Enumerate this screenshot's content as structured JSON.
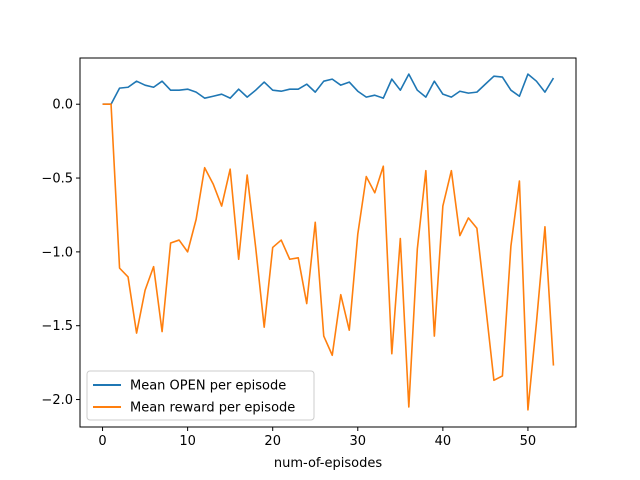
{
  "chart_data": {
    "type": "line",
    "title": "",
    "xlabel": "num-of-episodes",
    "ylabel": "",
    "xlim": [
      -2.65,
      55.65
    ],
    "ylim": [
      -2.186,
      0.313
    ],
    "xticks": [
      0,
      10,
      20,
      30,
      40,
      50
    ],
    "yticks": [
      0.0,
      -0.5,
      -1.0,
      -1.5,
      -2.0
    ],
    "ytick_labels": [
      "0.0",
      "−0.5",
      "−1.0",
      "−1.5",
      "−2.0"
    ],
    "grid": false,
    "legend_position": "lower-left",
    "x": [
      0,
      1,
      2,
      3,
      4,
      5,
      6,
      7,
      8,
      9,
      10,
      11,
      12,
      13,
      14,
      15,
      16,
      17,
      18,
      19,
      20,
      21,
      22,
      23,
      24,
      25,
      26,
      27,
      28,
      29,
      30,
      31,
      32,
      33,
      34,
      35,
      36,
      37,
      38,
      39,
      40,
      41,
      42,
      43,
      44,
      45,
      46,
      47,
      48,
      49,
      50,
      51,
      52,
      53
    ],
    "series": [
      {
        "name": "Mean OPEN per episode",
        "color": "#1f77b4",
        "values": [
          0.0,
          0.0,
          0.109,
          0.115,
          0.156,
          0.129,
          0.115,
          0.156,
          0.095,
          0.095,
          0.102,
          0.082,
          0.041,
          0.054,
          0.068,
          0.041,
          0.102,
          0.048,
          0.095,
          0.15,
          0.095,
          0.088,
          0.102,
          0.102,
          0.136,
          0.082,
          0.156,
          0.17,
          0.129,
          0.15,
          0.088,
          0.048,
          0.061,
          0.041,
          0.17,
          0.095,
          0.204,
          0.095,
          0.048,
          0.156,
          0.068,
          0.048,
          0.088,
          0.075,
          0.082,
          0.136,
          0.19,
          0.184,
          0.095,
          0.054,
          0.204,
          0.156,
          0.082,
          0.177
        ]
      },
      {
        "name": "Mean reward per episode",
        "color": "#ff7f0e",
        "values": [
          0.0,
          0.0,
          -1.11,
          -1.17,
          -1.55,
          -1.26,
          -1.1,
          -1.54,
          -0.94,
          -0.92,
          -1.0,
          -0.78,
          -0.43,
          -0.54,
          -0.69,
          -0.44,
          -1.05,
          -0.48,
          -0.97,
          -1.51,
          -0.97,
          -0.92,
          -1.05,
          -1.04,
          -1.35,
          -0.8,
          -1.57,
          -1.7,
          -1.29,
          -1.53,
          -0.88,
          -0.49,
          -0.6,
          -0.42,
          -1.69,
          -0.91,
          -2.05,
          -0.98,
          -0.45,
          -1.57,
          -0.69,
          -0.45,
          -0.89,
          -0.77,
          -0.84,
          -1.35,
          -1.87,
          -1.84,
          -0.96,
          -0.52,
          -2.07,
          -1.48,
          -0.83,
          -1.77
        ]
      }
    ]
  }
}
